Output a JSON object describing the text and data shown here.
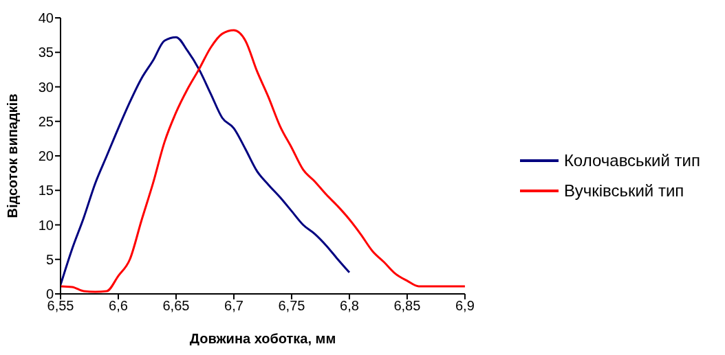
{
  "chart_data": {
    "type": "line",
    "xlabel": "Довжина хоботка, мм",
    "ylabel": "Відсоток випадків",
    "x": [
      6.55,
      6.56,
      6.57,
      6.58,
      6.59,
      6.6,
      6.61,
      6.62,
      6.63,
      6.64,
      6.65,
      6.66,
      6.67,
      6.68,
      6.69,
      6.7,
      6.71,
      6.72,
      6.73,
      6.74,
      6.75,
      6.76,
      6.77,
      6.78,
      6.79,
      6.8,
      6.81,
      6.82,
      6.83,
      6.84,
      6.85,
      6.86,
      6.87,
      6.88,
      6.89,
      6.9
    ],
    "series": [
      {
        "name": "Колочавський тип",
        "color": "#000080",
        "values": [
          1.3,
          6.5,
          11,
          16,
          20,
          24,
          27.8,
          31.2,
          33.8,
          36.7,
          37.2,
          35.2,
          32.5,
          29,
          25.5,
          24,
          21,
          17.8,
          15.8,
          14,
          12,
          10,
          8.7,
          7,
          5,
          3.1,
          null,
          null,
          null,
          null,
          null,
          null,
          null,
          null,
          null,
          null
        ]
      },
      {
        "name": "Вучківський тип",
        "color": "#ff0000",
        "values": [
          1.1,
          1,
          0.4,
          0.3,
          0.4,
          2.6,
          5,
          10.6,
          16,
          22,
          26.3,
          29.7,
          32.6,
          35.7,
          37.7,
          38.2,
          36.7,
          32.3,
          28.5,
          24.3,
          21.2,
          18,
          16.3,
          14.4,
          12.7,
          10.8,
          8.6,
          6.2,
          4.6,
          2.9,
          1.9,
          1.1,
          1.1,
          1.1,
          1.1,
          1.1
        ]
      }
    ],
    "xlim": [
      6.55,
      6.9
    ],
    "xticks": [
      {
        "value": 6.55,
        "label": "6,55"
      },
      {
        "value": 6.6,
        "label": "6,6"
      },
      {
        "value": 6.65,
        "label": "6,65"
      },
      {
        "value": 6.7,
        "label": "6,7"
      },
      {
        "value": 6.75,
        "label": "6,75"
      },
      {
        "value": 6.8,
        "label": "6,8"
      },
      {
        "value": 6.85,
        "label": "6,85"
      },
      {
        "value": 6.9,
        "label": "6,9"
      }
    ],
    "ylim": [
      0,
      40
    ],
    "yticks": [
      0,
      5,
      10,
      15,
      20,
      25,
      30,
      35,
      40
    ],
    "grid": false,
    "legend": "right",
    "marker": "none",
    "line_style": "solid"
  }
}
